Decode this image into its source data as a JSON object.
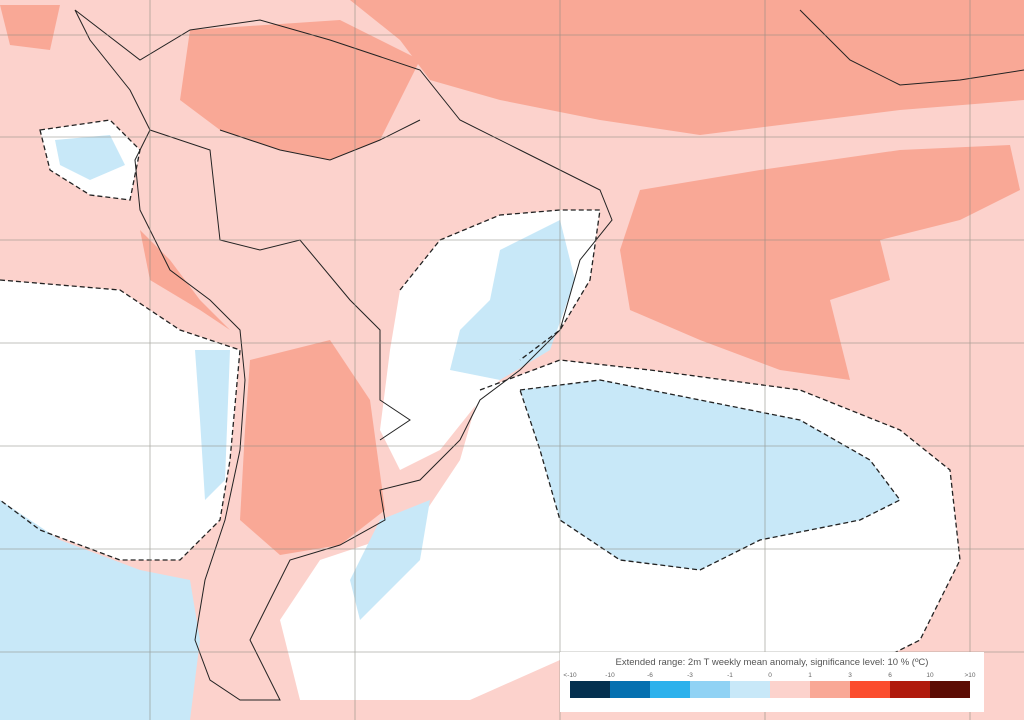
{
  "legend": {
    "title": "Extended range: 2m T weekly mean anomaly, significance level: 10 % (ºC)",
    "ticks": [
      "<-10",
      "-10",
      "-6",
      "-3",
      "-1",
      "0",
      "1",
      "3",
      "6",
      "10",
      ">10"
    ],
    "colors": [
      "#04304f",
      "#0570b0",
      "#2cb1ec",
      "#90d2f4",
      "#c8e8f8",
      "#fcd2cc",
      "#f9a896",
      "#fb4d2e",
      "#b01a0c",
      "#5c0c04"
    ]
  },
  "map_colors": {
    "background": "#fcd2cc",
    "warm": "#f9a896",
    "cold": "#c8e8f8",
    "neutral": "#ffffff"
  }
}
